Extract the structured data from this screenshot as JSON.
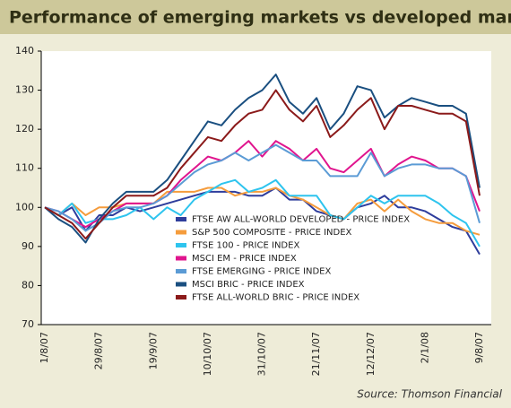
{
  "chart_data": {
    "type": "line",
    "title": "Performance of emerging markets vs developed markets",
    "source": "Source: Thomson Financial",
    "categories": [
      "1/8/07",
      null,
      null,
      null,
      "29/8/07",
      null,
      null,
      null,
      "19/9/07",
      null,
      null,
      null,
      "10/10/07",
      null,
      null,
      null,
      "31/10/07",
      null,
      null,
      null,
      "21/11/07",
      null,
      null,
      null,
      "12/12/07",
      null,
      null,
      null,
      "2/1/08",
      null,
      null,
      null,
      "9/8/07"
    ],
    "ylim": [
      70,
      140
    ],
    "yticks": [
      70,
      80,
      90,
      100,
      110,
      120,
      130,
      140
    ],
    "grid": false,
    "legend": "lower center",
    "series": [
      {
        "name": "FTSE AW ALL-WORLD DEVELOPED - PRICE INDEX",
        "color": "#2e3d9c",
        "values": [
          100,
          98,
          100,
          94,
          98,
          98,
          100,
          99,
          100,
          101,
          102,
          103,
          104,
          104,
          104,
          103,
          103,
          105,
          102,
          102,
          99,
          98,
          97,
          100,
          101,
          103,
          100,
          100,
          99,
          97,
          95,
          94,
          88
        ]
      },
      {
        "name": "S&P 500 COMPOSITE - PRICE INDEX",
        "color": "#f59c3c",
        "values": [
          100,
          98,
          101,
          98,
          100,
          100,
          101,
          101,
          101,
          104,
          104,
          104,
          105,
          105,
          103,
          104,
          104,
          105,
          103,
          102,
          100,
          98,
          97,
          101,
          102,
          99,
          102,
          99,
          97,
          96,
          96,
          94,
          93
        ]
      },
      {
        "name": "FTSE 100 - PRICE INDEX",
        "color": "#2ec4ee",
        "values": [
          100,
          98,
          101,
          96,
          97,
          97,
          98,
          100,
          97,
          100,
          98,
          102,
          104,
          106,
          107,
          104,
          105,
          107,
          103,
          103,
          103,
          98,
          97,
          100,
          103,
          101,
          103,
          103,
          103,
          101,
          98,
          96,
          90
        ]
      },
      {
        "name": "MSCI EM - PRICE INDEX",
        "color": "#e0158e",
        "values": [
          100,
          99,
          97,
          95,
          97,
          99,
          101,
          101,
          101,
          103,
          107,
          110,
          113,
          112,
          114,
          117,
          113,
          117,
          115,
          112,
          115,
          110,
          109,
          112,
          115,
          108,
          111,
          113,
          112,
          110,
          110,
          108,
          99
        ]
      },
      {
        "name": "FTSE EMERGING - PRICE INDEX",
        "color": "#5b9bd5",
        "values": [
          100,
          99,
          97,
          94,
          96,
          99,
          100,
          100,
          101,
          103,
          106,
          109,
          111,
          112,
          114,
          112,
          114,
          116,
          114,
          112,
          112,
          108,
          108,
          108,
          114,
          108,
          110,
          111,
          111,
          110,
          110,
          108,
          96
        ]
      },
      {
        "name": "MSCI BRIC - PRICE INDEX",
        "color": "#1a4f80",
        "values": [
          100,
          97,
          95,
          91,
          97,
          101,
          104,
          104,
          104,
          107,
          112,
          117,
          122,
          121,
          125,
          128,
          130,
          134,
          127,
          124,
          128,
          120,
          124,
          131,
          130,
          123,
          126,
          128,
          127,
          126,
          126,
          124,
          105
        ]
      },
      {
        "name": "FTSE ALL-WORLD BRIC - PRICE INDEX",
        "color": "#8b1a1a",
        "values": [
          100,
          98,
          96,
          92,
          96,
          100,
          103,
          103,
          103,
          105,
          110,
          114,
          118,
          117,
          121,
          124,
          125,
          130,
          125,
          122,
          126,
          118,
          121,
          125,
          128,
          120,
          126,
          126,
          125,
          124,
          124,
          122,
          103
        ]
      }
    ]
  }
}
